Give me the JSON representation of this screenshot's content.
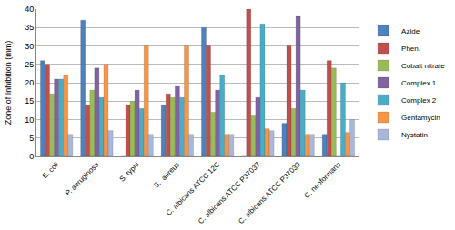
{
  "chart_data": {
    "type": "bar",
    "ylabel": "Zone of Inhibition (mm)",
    "categories": [
      "E. coli",
      "P. aeruginosa",
      "S. typhi",
      "S.  aureus",
      "C. albicans ATCC 12C",
      "C. albicans ATCC P37037",
      "C. albicans ATCC P37039",
      "C. neoformans"
    ],
    "series": [
      {
        "name": "Azide",
        "color": "#4f81bd",
        "values": [
          26,
          37,
          0,
          14,
          35,
          0,
          9,
          6
        ]
      },
      {
        "name": "Phen.",
        "color": "#c0504d",
        "values": [
          25,
          14,
          14,
          17,
          30,
          40,
          30,
          26
        ]
      },
      {
        "name": "Cobalt nitrate",
        "color": "#9bbb59",
        "values": [
          17,
          18,
          15,
          16,
          12,
          11,
          13,
          24
        ]
      },
      {
        "name": "Complex 1",
        "color": "#8064a2",
        "values": [
          21,
          24,
          18,
          19,
          18,
          16,
          38,
          0
        ]
      },
      {
        "name": "Complex 2",
        "color": "#4bacc6",
        "values": [
          21,
          16,
          13,
          16,
          22,
          36,
          18,
          20
        ]
      },
      {
        "name": "Gentamycin",
        "color": "#f79646",
        "values": [
          22,
          25,
          30,
          30,
          6,
          7.5,
          6,
          6.5
        ]
      },
      {
        "name": "Nystatin",
        "color": "#a9b8da",
        "values": [
          6,
          7,
          6,
          6,
          6,
          7,
          6,
          10
        ]
      }
    ],
    "ylim": [
      0,
      40
    ],
    "yticks": [
      0,
      5,
      10,
      15,
      20,
      25,
      30,
      35,
      40
    ],
    "grid": true,
    "legend": "right"
  }
}
